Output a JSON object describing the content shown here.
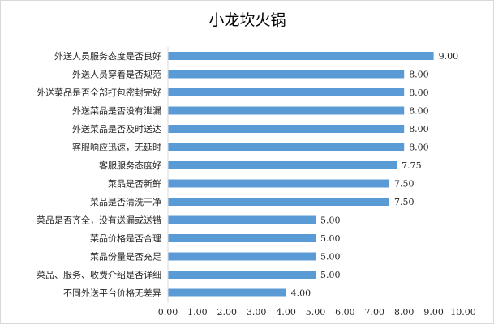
{
  "chart_data": {
    "type": "bar",
    "orientation": "horizontal",
    "title": "小龙坎火锅",
    "categories": [
      "外送人员服务态度是否良好",
      "外送人员穿着是否规范",
      "外送菜品是否全部打包密封完好",
      "外送菜品是否没有泄漏",
      "外送菜品是否及时送达",
      "客服响应迅速，无延时",
      "客服服务态度好",
      "菜品是否新鲜",
      "菜品是否清洗干净",
      "菜品是否齐全，没有送漏或送错",
      "菜品价格是否合理",
      "菜品份量是否充足",
      "菜品、服务、收费介绍是否详细",
      "不同外送平台价格无差异"
    ],
    "values": [
      9.0,
      8.0,
      8.0,
      8.0,
      8.0,
      8.0,
      7.75,
      7.5,
      7.5,
      5.0,
      5.0,
      5.0,
      5.0,
      4.0
    ],
    "value_labels": [
      "9.00",
      "8.00",
      "8.00",
      "8.00",
      "8.00",
      "8.00",
      "7.75",
      "7.50",
      "7.50",
      "5.00",
      "5.00",
      "5.00",
      "5.00",
      "4.00"
    ],
    "xlim": [
      0,
      10
    ],
    "x_ticks": [
      "0.00",
      "1.00",
      "2.00",
      "3.00",
      "4.00",
      "5.00",
      "6.00",
      "7.00",
      "8.00",
      "9.00",
      "10.00"
    ],
    "grid": false,
    "legend": "none",
    "bar_color": "#5B9BD5",
    "axis_color": "#d9d9d9"
  }
}
